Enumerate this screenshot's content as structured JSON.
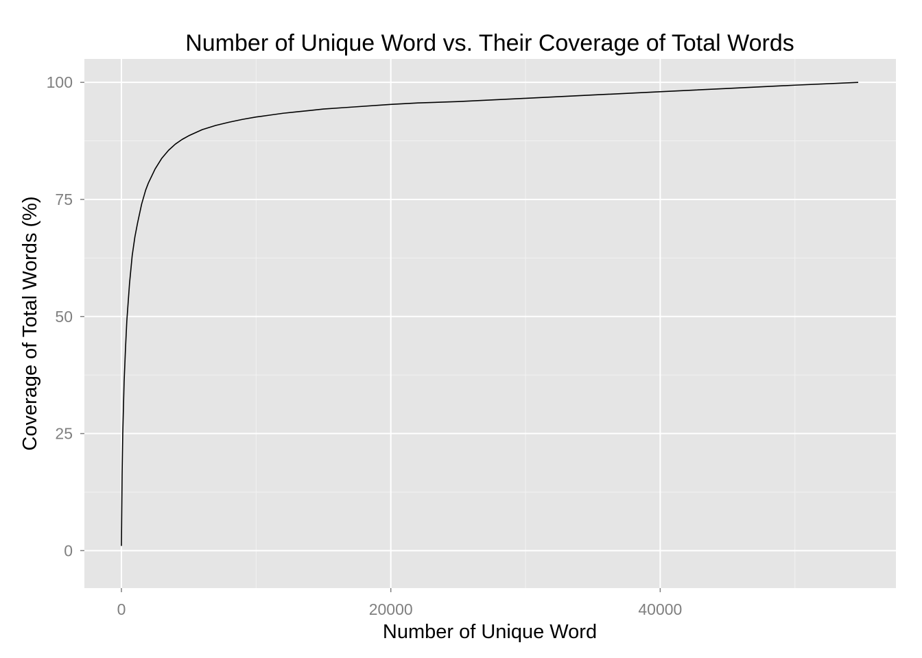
{
  "chart_data": {
    "type": "line",
    "title": "Number of Unique Word vs. Their Coverage of Total Words",
    "xlabel": "Number of Unique Word",
    "ylabel": "Coverage of Total Words (%)",
    "xlim": [
      -2750,
      57500
    ],
    "ylim": [
      -8,
      105
    ],
    "x_ticks": [
      0,
      20000,
      40000
    ],
    "x_tick_labels": [
      "0",
      "20000",
      "40000"
    ],
    "x_minor_ticks": [
      10000,
      30000,
      50000
    ],
    "y_ticks": [
      0,
      25,
      50,
      75,
      100
    ],
    "y_tick_labels": [
      "0",
      "25",
      "50",
      "75",
      "100"
    ],
    "y_minor_ticks": [
      12.5,
      37.5,
      62.5,
      87.5
    ],
    "grid": true,
    "legend": "none",
    "colors": {
      "panel": "#e5e5e5",
      "grid_major": "#ffffff",
      "grid_minor": "#f2f2f2",
      "line": "#000000",
      "tick_text": "#7f7f7f"
    },
    "series": [
      {
        "x": [
          0,
          50,
          100,
          200,
          300,
          400,
          500,
          600,
          800,
          1000,
          1200,
          1500,
          1800,
          2000,
          2500,
          3000,
          3500,
          4000,
          4500,
          5000,
          6000,
          7000,
          8000,
          9000,
          10000,
          11000,
          12000,
          13000,
          14000,
          15000,
          17000,
          20000,
          22000,
          25000,
          30000,
          35000,
          40000,
          45000,
          50000,
          54700
        ],
        "values": [
          1,
          16,
          25,
          36,
          43,
          49,
          53,
          57,
          63,
          67,
          70,
          74,
          77,
          78.5,
          81.5,
          83.8,
          85.5,
          86.8,
          87.8,
          88.6,
          89.9,
          90.8,
          91.5,
          92.1,
          92.6,
          93.0,
          93.4,
          93.7,
          94.0,
          94.3,
          94.7,
          95.3,
          95.6,
          95.9,
          96.6,
          97.3,
          98.0,
          98.7,
          99.4,
          100
        ]
      }
    ]
  }
}
